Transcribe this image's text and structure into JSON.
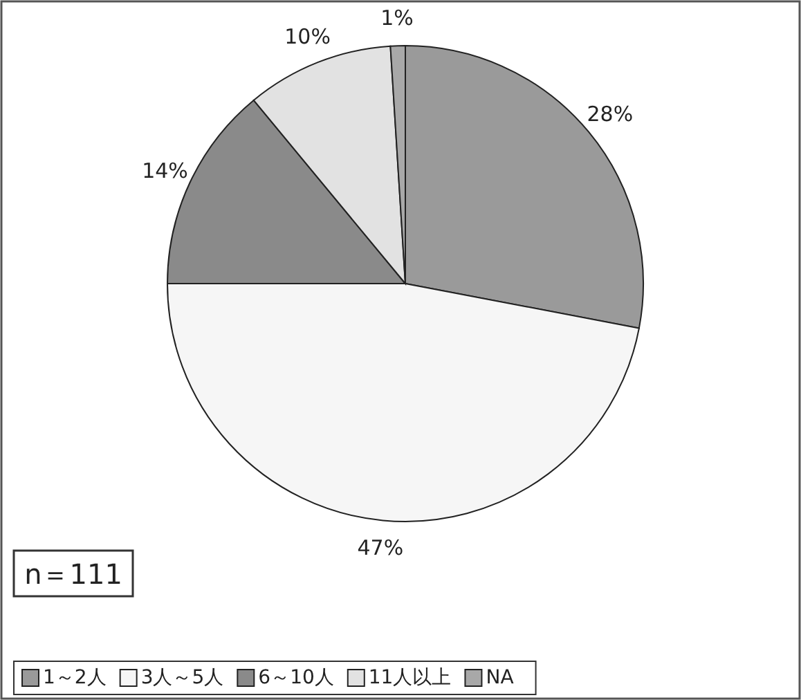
{
  "chart_data": {
    "type": "pie",
    "categories": [
      "1～2人",
      "3人～5人",
      "6～10人",
      "11人以上",
      "NA"
    ],
    "values": [
      28,
      47,
      14,
      10,
      1
    ],
    "colors": [
      "#9a9a9a",
      "#f6f6f6",
      "#8a8a8a",
      "#e2e2e2",
      "#a8a8a8"
    ],
    "value_labels": [
      "28%",
      "47%",
      "14%",
      "10%",
      "1%"
    ],
    "legend": "bottom",
    "annotations": [
      "n＝111"
    ]
  }
}
